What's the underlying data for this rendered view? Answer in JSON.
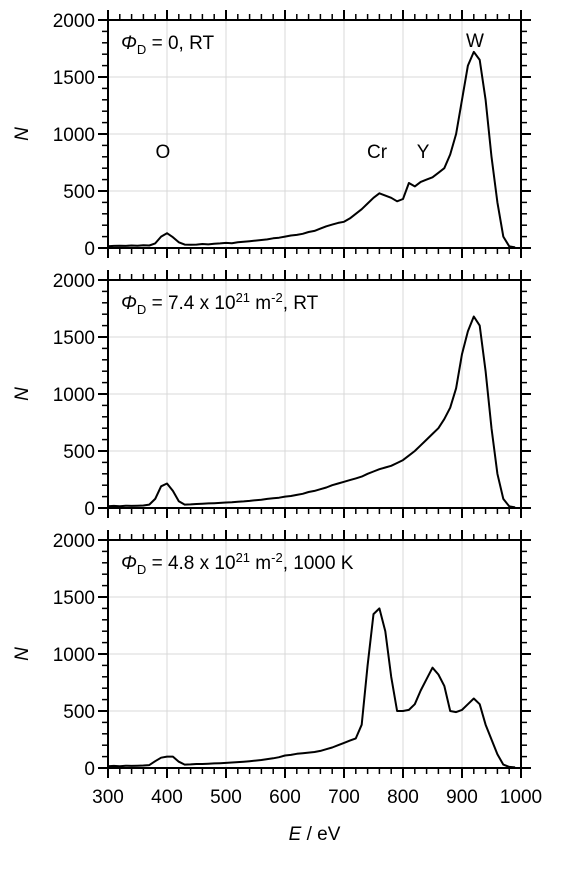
{
  "chart_data": [
    {
      "type": "line",
      "title": [
        {
          "text": "Φ",
          "italic": true
        },
        {
          "text": "D",
          "sub": true
        },
        {
          "text": " = 0, RT"
        }
      ],
      "ylabel": [
        {
          "text": "N",
          "italic": true
        }
      ],
      "xlim": [
        300,
        1000
      ],
      "xticks": [
        300,
        400,
        500,
        600,
        700,
        800,
        900,
        1000
      ],
      "xtick_labels": false,
      "ylim": [
        0,
        2000
      ],
      "yticks": [
        0,
        500,
        1000,
        1500,
        2000
      ],
      "xminor": 20,
      "yminor": 100,
      "grid": true,
      "annotations": [
        {
          "text": "O",
          "x": 393,
          "y": 870
        },
        {
          "text": "Cr",
          "x": 756,
          "y": 870
        },
        {
          "text": "Y",
          "x": 834,
          "y": 870
        },
        {
          "text": "W",
          "x": 922,
          "y": 1840
        }
      ],
      "x": [
        300,
        310,
        320,
        330,
        340,
        350,
        360,
        370,
        380,
        390,
        400,
        410,
        420,
        430,
        440,
        450,
        460,
        470,
        480,
        490,
        500,
        510,
        520,
        530,
        540,
        550,
        560,
        570,
        580,
        590,
        600,
        610,
        620,
        630,
        640,
        650,
        660,
        670,
        680,
        690,
        700,
        710,
        720,
        730,
        740,
        750,
        760,
        770,
        780,
        790,
        800,
        810,
        820,
        830,
        840,
        850,
        860,
        870,
        880,
        890,
        900,
        910,
        920,
        930,
        940,
        950,
        960,
        970,
        980,
        990
      ],
      "series": [
        {
          "color": "#000000",
          "values": [
            15,
            18,
            20,
            18,
            22,
            20,
            25,
            22,
            40,
            100,
            130,
            95,
            50,
            30,
            28,
            30,
            35,
            32,
            38,
            40,
            45,
            42,
            50,
            55,
            60,
            65,
            70,
            75,
            85,
            90,
            100,
            110,
            115,
            125,
            140,
            150,
            170,
            190,
            205,
            220,
            230,
            260,
            300,
            340,
            390,
            440,
            480,
            460,
            440,
            410,
            430,
            570,
            540,
            580,
            600,
            620,
            660,
            700,
            820,
            1000,
            1300,
            1600,
            1720,
            1650,
            1300,
            800,
            400,
            100,
            15,
            5
          ]
        }
      ]
    },
    {
      "type": "line",
      "title": [
        {
          "text": "Φ",
          "italic": true
        },
        {
          "text": "D",
          "sub": true
        },
        {
          "text": " = 7.4 x 10"
        },
        {
          "text": "21",
          "sup": true
        },
        {
          "text": " m"
        },
        {
          "text": "-2",
          "sup": true
        },
        {
          "text": ", RT"
        }
      ],
      "ylabel": [
        {
          "text": "N",
          "italic": true
        }
      ],
      "xlim": [
        300,
        1000
      ],
      "xticks": [
        300,
        400,
        500,
        600,
        700,
        800,
        900,
        1000
      ],
      "xtick_labels": false,
      "ylim": [
        0,
        2000
      ],
      "yticks": [
        0,
        500,
        1000,
        1500,
        2000
      ],
      "xminor": 20,
      "yminor": 100,
      "grid": true,
      "x": [
        300,
        310,
        320,
        330,
        340,
        350,
        360,
        370,
        380,
        390,
        400,
        410,
        420,
        430,
        440,
        450,
        460,
        470,
        480,
        490,
        500,
        510,
        520,
        530,
        540,
        550,
        560,
        570,
        580,
        590,
        600,
        610,
        620,
        630,
        640,
        650,
        660,
        670,
        680,
        690,
        700,
        710,
        720,
        730,
        740,
        750,
        760,
        770,
        780,
        790,
        800,
        810,
        820,
        830,
        840,
        850,
        860,
        870,
        880,
        890,
        900,
        910,
        920,
        930,
        940,
        950,
        960,
        970,
        980,
        990
      ],
      "series": [
        {
          "color": "#000000",
          "values": [
            15,
            18,
            15,
            20,
            18,
            20,
            22,
            30,
            80,
            190,
            215,
            150,
            60,
            30,
            32,
            35,
            38,
            40,
            42,
            45,
            48,
            50,
            55,
            58,
            62,
            68,
            72,
            80,
            85,
            90,
            100,
            105,
            115,
            125,
            140,
            150,
            165,
            180,
            200,
            215,
            230,
            245,
            260,
            275,
            300,
            320,
            340,
            355,
            370,
            395,
            420,
            460,
            500,
            550,
            600,
            650,
            700,
            780,
            880,
            1050,
            1350,
            1550,
            1680,
            1600,
            1200,
            700,
            300,
            80,
            15,
            5
          ]
        }
      ]
    },
    {
      "type": "line",
      "title": [
        {
          "text": "Φ",
          "italic": true
        },
        {
          "text": "D",
          "sub": true
        },
        {
          "text": " = 4.8 x 10"
        },
        {
          "text": "21",
          "sup": true
        },
        {
          "text": " m"
        },
        {
          "text": "-2",
          "sup": true
        },
        {
          "text": ", 1000 K"
        }
      ],
      "ylabel": [
        {
          "text": "N",
          "italic": true
        }
      ],
      "xlabel": [
        {
          "text": "E",
          "italic": true
        },
        {
          "text": " / eV"
        }
      ],
      "xlim": [
        300,
        1000
      ],
      "xticks": [
        300,
        400,
        500,
        600,
        700,
        800,
        900,
        1000
      ],
      "xtick_labels": true,
      "ylim": [
        0,
        2000
      ],
      "yticks": [
        0,
        500,
        1000,
        1500,
        2000
      ],
      "xminor": 20,
      "yminor": 100,
      "grid": true,
      "x": [
        300,
        310,
        320,
        330,
        340,
        350,
        360,
        370,
        380,
        390,
        400,
        410,
        420,
        430,
        440,
        450,
        460,
        470,
        480,
        490,
        500,
        510,
        520,
        530,
        540,
        550,
        560,
        570,
        580,
        590,
        600,
        610,
        620,
        630,
        640,
        650,
        660,
        670,
        680,
        690,
        700,
        710,
        720,
        730,
        740,
        750,
        760,
        770,
        780,
        790,
        800,
        810,
        820,
        830,
        840,
        850,
        860,
        870,
        880,
        890,
        900,
        910,
        920,
        930,
        940,
        950,
        960,
        970,
        980,
        990
      ],
      "series": [
        {
          "color": "#000000",
          "values": [
            15,
            18,
            15,
            20,
            18,
            20,
            22,
            25,
            60,
            90,
            100,
            100,
            55,
            30,
            32,
            35,
            35,
            38,
            40,
            42,
            45,
            48,
            52,
            55,
            60,
            65,
            70,
            78,
            85,
            95,
            110,
            115,
            125,
            130,
            135,
            140,
            150,
            165,
            180,
            200,
            220,
            240,
            260,
            380,
            900,
            1350,
            1400,
            1200,
            800,
            500,
            500,
            510,
            560,
            680,
            780,
            880,
            820,
            720,
            500,
            490,
            510,
            560,
            610,
            560,
            380,
            250,
            120,
            30,
            10,
            5
          ]
        }
      ]
    }
  ]
}
